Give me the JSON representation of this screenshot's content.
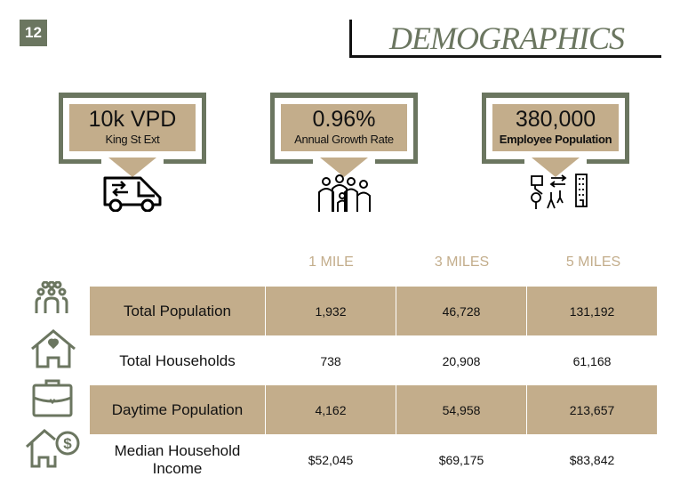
{
  "page_number": "12",
  "title": "DEMOGRAPHICS",
  "highlights": [
    {
      "value": "10k VPD",
      "label": "King St Ext",
      "icon": "van-icon"
    },
    {
      "value": "0.96%",
      "label": "Annual Growth Rate",
      "icon": "family-icon"
    },
    {
      "value": "380,000",
      "label": "Employee Population",
      "icon": "commute-icon"
    }
  ],
  "table": {
    "headers": [
      "1 MILE",
      "3 MILES",
      "5 MILES"
    ],
    "rows": [
      {
        "label": "Total Population",
        "values": [
          "1,932",
          "46,728",
          "131,192"
        ],
        "icon": "people-group-icon"
      },
      {
        "label": "Total Households",
        "values": [
          "738",
          "20,908",
          "61,168"
        ],
        "icon": "house-heart-icon"
      },
      {
        "label": "Daytime Population",
        "values": [
          "4,162",
          "54,958",
          "213,657"
        ],
        "icon": "briefcase-icon"
      },
      {
        "label": "Median Household Income",
        "values": [
          "$52,045",
          "$69,175",
          "$83,842"
        ],
        "icon": "house-dollar-icon"
      }
    ]
  },
  "colors": {
    "green": "#6b7660",
    "tan": "#c3ad8b"
  }
}
